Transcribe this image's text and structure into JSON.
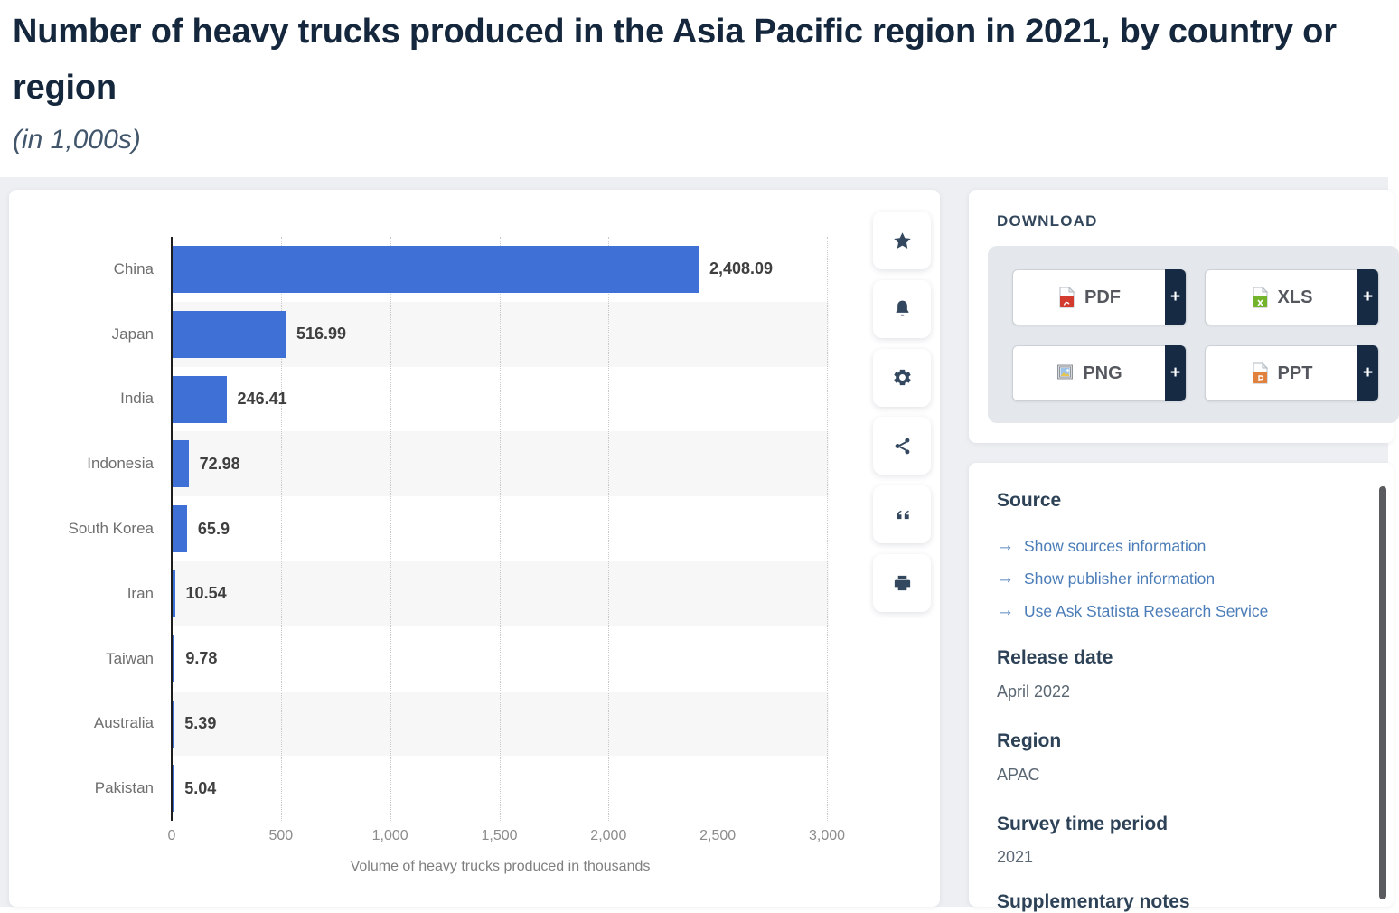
{
  "page": {
    "title": "Number of heavy trucks produced in the Asia Pacific region in 2021, by country or region",
    "subtitle": "(in 1,000s)"
  },
  "chart_data": {
    "type": "bar",
    "orientation": "horizontal",
    "title": "Number of heavy trucks produced in the Asia Pacific region in 2021, by country or region (in 1,000s)",
    "categories": [
      "China",
      "Japan",
      "India",
      "Indonesia",
      "South Korea",
      "Iran",
      "Taiwan",
      "Australia",
      "Pakistan"
    ],
    "values": [
      2408.09,
      516.99,
      246.41,
      72.98,
      65.9,
      10.54,
      9.78,
      5.39,
      5.04
    ],
    "value_labels": [
      "2,408.09",
      "516.99",
      "246.41",
      "72.98",
      "65.9",
      "10.54",
      "9.78",
      "5.39",
      "5.04"
    ],
    "xlabel": "Volume of heavy trucks produced in thousands",
    "ylabel": "",
    "xlim": [
      0,
      3000
    ],
    "xticks": [
      0,
      500,
      1000,
      1500,
      2000,
      2500,
      3000
    ],
    "xtick_labels": [
      "0",
      "500",
      "1,000",
      "1,500",
      "2,000",
      "2,500",
      "3,000"
    ],
    "grid": "vertical-dotted",
    "legend": "none",
    "bar_color": "#3e70d6",
    "stripe_color": "#f7f7f8"
  },
  "toolbar": {
    "buttons": [
      {
        "name": "favorite",
        "icon": "star-icon"
      },
      {
        "name": "alert",
        "icon": "bell-icon"
      },
      {
        "name": "settings",
        "icon": "gear-icon"
      },
      {
        "name": "share",
        "icon": "share-icon"
      },
      {
        "name": "cite",
        "icon": "quote-icon"
      },
      {
        "name": "print",
        "icon": "printer-icon"
      }
    ]
  },
  "download": {
    "heading": "DOWNLOAD",
    "plus_label": "+",
    "formats": [
      {
        "label": "PDF",
        "icon": "pdf-file-icon"
      },
      {
        "label": "XLS",
        "icon": "xls-file-icon"
      },
      {
        "label": "PNG",
        "icon": "png-file-icon"
      },
      {
        "label": "PPT",
        "icon": "ppt-file-icon"
      }
    ]
  },
  "source_panel": {
    "source_heading": "Source",
    "links": [
      "Show sources information",
      "Show publisher information",
      "Use Ask Statista Research Service"
    ],
    "release_date_heading": "Release date",
    "release_date": "April 2022",
    "region_heading": "Region",
    "region": "APAC",
    "survey_heading": "Survey time period",
    "survey_period": "2021",
    "supplementary_heading": "Supplementary notes"
  }
}
